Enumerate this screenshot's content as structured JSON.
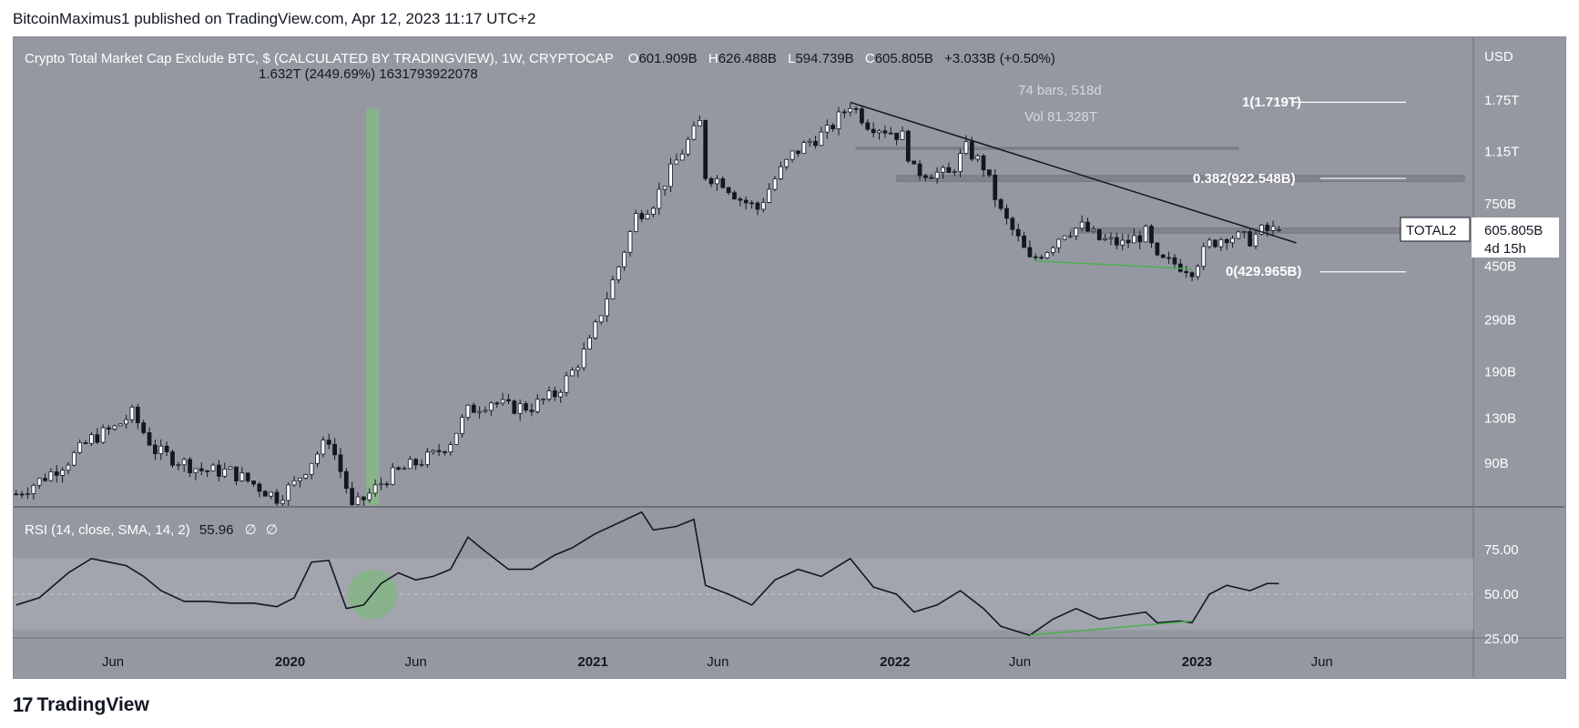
{
  "publisher": "BitcoinMaximus1 published on TradingView.com, Apr 12, 2023 11:17 UTC+2",
  "header": {
    "title": "Crypto Total Market Cap Exclude BTC, $ (CALCULATED BY TRADINGVIEW), 1W, CRYPTOCAP",
    "o_label": "O",
    "o_value": "601.909B",
    "h_label": "H",
    "h_value": "626.488B",
    "l_label": "L",
    "l_value": "594.739B",
    "c_label": "C",
    "c_value": "605.805B",
    "change": "+3.033B (+0.50%)"
  },
  "measure": {
    "label": "1.632T (2449.69%) 1631793922078",
    "bars": "74 bars, 518d",
    "vol": "Vol 81.328T"
  },
  "fib": {
    "f1": "1(1.719T)",
    "f0382": "0.382(922.548B)",
    "f0": "0(429.965B)"
  },
  "price_label": {
    "symbol": "TOTAL2",
    "value": "605.805B",
    "countdown": "4d 15h"
  },
  "rsi_header": {
    "label": "RSI (14, close, SMA, 14, 2)",
    "value": "55.96",
    "na1": "∅",
    "na2": "∅"
  },
  "axis": {
    "currency": "USD",
    "price_ticks": [
      {
        "label": "1.75T",
        "value": 1750
      },
      {
        "label": "1.15T",
        "value": 1150
      },
      {
        "label": "750B",
        "value": 750
      },
      {
        "label": "450B",
        "value": 450
      },
      {
        "label": "290B",
        "value": 290
      },
      {
        "label": "190B",
        "value": 190
      },
      {
        "label": "130B",
        "value": 130
      },
      {
        "label": "90B",
        "value": 90
      }
    ],
    "rsi_ticks": [
      {
        "label": "75.00",
        "value": 75
      },
      {
        "label": "50.00",
        "value": 50
      },
      {
        "label": "25.00",
        "value": 25
      }
    ],
    "time_ticks": [
      {
        "label": "Jun",
        "date": "2019-06"
      },
      {
        "label": "2020",
        "date": "2020-01"
      },
      {
        "label": "Jun",
        "date": "2020-06"
      },
      {
        "label": "2021",
        "date": "2021-01"
      },
      {
        "label": "Jun",
        "date": "2021-06"
      },
      {
        "label": "2022",
        "date": "2022-01"
      },
      {
        "label": "Jun",
        "date": "2022-06"
      },
      {
        "label": "2023",
        "date": "2023-01"
      },
      {
        "label": "Jun",
        "date": "2023-06"
      }
    ]
  },
  "footer": {
    "brand": "TradingView"
  },
  "colors": {
    "chart_bg": "#9598a1",
    "up_candle": "#ffffff",
    "down_candle": "#131722",
    "trendline": "#131722",
    "support_divergence": "#4caf50",
    "measure_bar": "#86b886",
    "fib_line": "#ffffff",
    "rsi_band": "#a3a6ae"
  },
  "chart_data": [
    {
      "type": "candlestick",
      "y_scale": "log",
      "y_unit": "USD (billions)",
      "x_range": [
        "2019-02",
        "2023-12"
      ],
      "annotations": {
        "descending_resistance": {
          "from": [
            "2021-11-08",
            1719
          ],
          "to": [
            "2023-04-10",
            560
          ]
        },
        "fib_levels": [
          {
            "level": 1,
            "value": 1719
          },
          {
            "level": 0.382,
            "value": 922.548
          },
          {
            "level": 0,
            "value": 429.965
          }
        ],
        "support_divergence": {
          "from": [
            "2022-06-20",
            470
          ],
          "to": [
            "2022-12-26",
            440
          ]
        },
        "measure_bar": {
          "date": "2020-04",
          "from": 64,
          "to": 1632
        }
      },
      "path": [
        [
          "2019-02-04",
          70
        ],
        [
          "2019-03-04",
          78
        ],
        [
          "2019-04-08",
          92
        ],
        [
          "2019-05-06",
          110
        ],
        [
          "2019-06-03",
          120
        ],
        [
          "2019-06-24",
          135
        ],
        [
          "2019-07-22",
          100
        ],
        [
          "2019-08-19",
          92
        ],
        [
          "2019-09-16",
          85
        ],
        [
          "2019-10-21",
          84
        ],
        [
          "2019-11-18",
          76
        ],
        [
          "2019-12-16",
          68
        ],
        [
          "2020-01-06",
          76
        ],
        [
          "2020-01-27",
          92
        ],
        [
          "2020-02-17",
          110
        ],
        [
          "2020-03-09",
          74
        ],
        [
          "2020-03-16",
          62
        ],
        [
          "2020-04-06",
          70
        ],
        [
          "2020-04-27",
          80
        ],
        [
          "2020-05-25",
          88
        ],
        [
          "2020-06-22",
          96
        ],
        [
          "2020-07-13",
          108
        ],
        [
          "2020-08-03",
          138
        ],
        [
          "2020-08-31",
          150
        ],
        [
          "2020-09-21",
          142
        ],
        [
          "2020-10-19",
          143
        ],
        [
          "2020-11-16",
          158
        ],
        [
          "2020-12-07",
          190
        ],
        [
          "2020-12-28",
          240
        ],
        [
          "2021-01-11",
          310
        ],
        [
          "2021-02-01",
          450
        ],
        [
          "2021-02-22",
          680
        ],
        [
          "2021-03-15",
          760
        ],
        [
          "2021-04-05",
          980
        ],
        [
          "2021-04-26",
          1250
        ],
        [
          "2021-05-10",
          1450
        ],
        [
          "2021-05-17",
          950
        ],
        [
          "2021-06-07",
          900
        ],
        [
          "2021-06-28",
          780
        ],
        [
          "2021-07-19",
          720
        ],
        [
          "2021-08-09",
          920
        ],
        [
          "2021-08-30",
          1120
        ],
        [
          "2021-09-20",
          1250
        ],
        [
          "2021-10-11",
          1350
        ],
        [
          "2021-11-08",
          1700
        ],
        [
          "2021-11-29",
          1450
        ],
        [
          "2021-12-20",
          1380
        ],
        [
          "2022-01-10",
          1300
        ],
        [
          "2022-01-24",
          980
        ],
        [
          "2022-02-14",
          970
        ],
        [
          "2022-03-07",
          950
        ],
        [
          "2022-03-28",
          1180
        ],
        [
          "2022-04-18",
          1020
        ],
        [
          "2022-05-09",
          700
        ],
        [
          "2022-05-30",
          560
        ],
        [
          "2022-06-13",
          470
        ],
        [
          "2022-07-04",
          520
        ],
        [
          "2022-07-25",
          600
        ],
        [
          "2022-08-15",
          620
        ],
        [
          "2022-09-05",
          560
        ],
        [
          "2022-10-03",
          540
        ],
        [
          "2022-10-31",
          590
        ],
        [
          "2022-11-14",
          470
        ],
        [
          "2022-12-05",
          460
        ],
        [
          "2022-12-26",
          440
        ],
        [
          "2023-01-16",
          540
        ],
        [
          "2023-02-06",
          580
        ],
        [
          "2023-03-06",
          560
        ],
        [
          "2023-03-20",
          600
        ],
        [
          "2023-04-10",
          605.805
        ]
      ]
    },
    {
      "type": "line",
      "name": "RSI (14, close, SMA, 14, 2)",
      "ylim": [
        25,
        100
      ],
      "bands": [
        30,
        70
      ],
      "midline": 50,
      "annotations": {
        "highlight_circle": {
          "date": "2020-04",
          "value": 50
        },
        "divergence": {
          "from": [
            "2022-06-13",
            27
          ],
          "to": [
            "2022-12-26",
            35
          ]
        }
      },
      "path": [
        [
          "2019-02-04",
          44
        ],
        [
          "2019-03-04",
          48
        ],
        [
          "2019-04-08",
          62
        ],
        [
          "2019-05-06",
          70
        ],
        [
          "2019-05-27",
          68
        ],
        [
          "2019-06-17",
          66
        ],
        [
          "2019-07-08",
          60
        ],
        [
          "2019-07-29",
          52
        ],
        [
          "2019-08-26",
          46
        ],
        [
          "2019-09-23",
          46
        ],
        [
          "2019-10-21",
          45
        ],
        [
          "2019-11-18",
          45
        ],
        [
          "2019-12-16",
          43
        ],
        [
          "2020-01-06",
          48
        ],
        [
          "2020-01-27",
          68
        ],
        [
          "2020-02-17",
          69
        ],
        [
          "2020-03-09",
          42
        ],
        [
          "2020-03-30",
          44
        ],
        [
          "2020-04-20",
          56
        ],
        [
          "2020-05-11",
          62
        ],
        [
          "2020-06-01",
          58
        ],
        [
          "2020-06-22",
          60
        ],
        [
          "2020-07-13",
          64
        ],
        [
          "2020-08-03",
          82
        ],
        [
          "2020-08-24",
          74
        ],
        [
          "2020-09-21",
          64
        ],
        [
          "2020-10-19",
          64
        ],
        [
          "2020-11-16",
          72
        ],
        [
          "2020-12-07",
          76
        ],
        [
          "2021-01-04",
          84
        ],
        [
          "2021-02-01",
          90
        ],
        [
          "2021-03-01",
          96
        ],
        [
          "2021-03-15",
          86
        ],
        [
          "2021-04-12",
          88
        ],
        [
          "2021-05-03",
          92
        ],
        [
          "2021-05-17",
          55
        ],
        [
          "2021-06-14",
          50
        ],
        [
          "2021-07-12",
          44
        ],
        [
          "2021-08-09",
          58
        ],
        [
          "2021-09-06",
          64
        ],
        [
          "2021-10-04",
          60
        ],
        [
          "2021-10-25",
          66
        ],
        [
          "2021-11-08",
          70
        ],
        [
          "2021-12-06",
          54
        ],
        [
          "2022-01-03",
          50
        ],
        [
          "2022-01-24",
          40
        ],
        [
          "2022-02-21",
          44
        ],
        [
          "2022-03-21",
          52
        ],
        [
          "2022-04-18",
          42
        ],
        [
          "2022-05-09",
          32
        ],
        [
          "2022-06-13",
          27
        ],
        [
          "2022-07-11",
          36
        ],
        [
          "2022-08-08",
          42
        ],
        [
          "2022-09-05",
          36
        ],
        [
          "2022-10-03",
          38
        ],
        [
          "2022-10-31",
          40
        ],
        [
          "2022-11-14",
          34
        ],
        [
          "2022-12-12",
          35
        ],
        [
          "2022-12-26",
          34
        ],
        [
          "2023-01-16",
          50
        ],
        [
          "2023-02-06",
          55
        ],
        [
          "2023-03-06",
          52
        ],
        [
          "2023-03-27",
          56
        ],
        [
          "2023-04-10",
          55.96
        ]
      ]
    }
  ]
}
